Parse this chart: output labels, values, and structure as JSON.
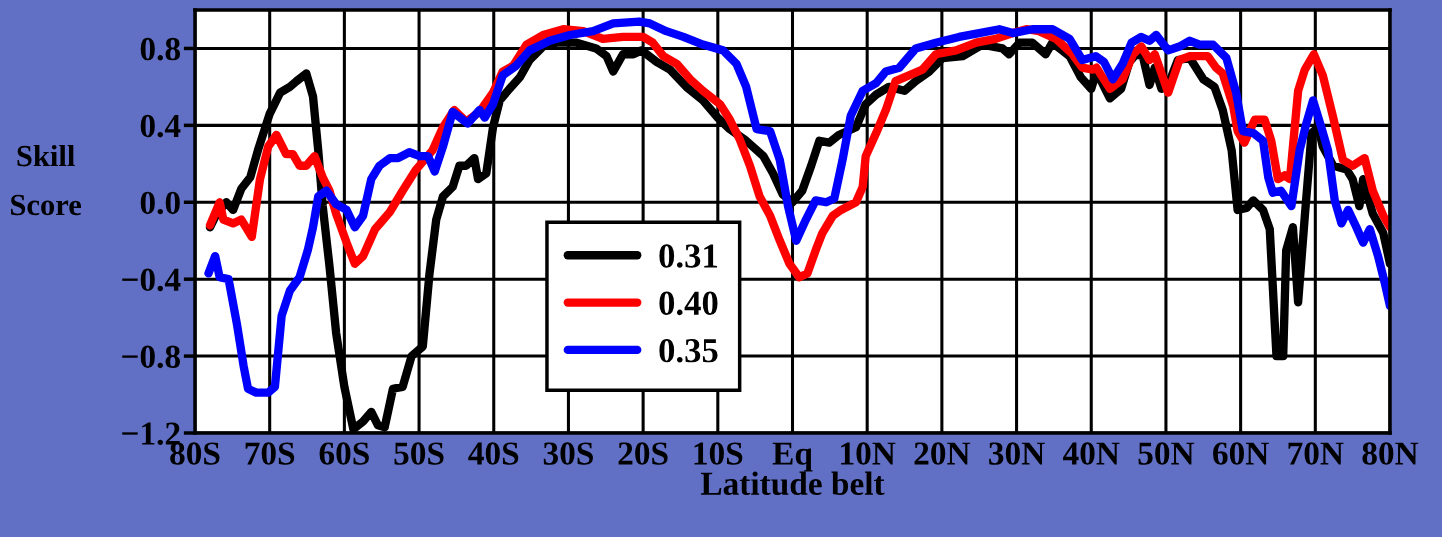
{
  "chart_data": {
    "type": "line",
    "xlabel": "Latitude belt",
    "ylabel": "Skill\nScore",
    "xlim": [
      -80,
      80
    ],
    "xticks": [
      {
        "value": -80,
        "label": "80S"
      },
      {
        "value": -70,
        "label": "70S"
      },
      {
        "value": -60,
        "label": "60S"
      },
      {
        "value": -50,
        "label": "50S"
      },
      {
        "value": -40,
        "label": "40S"
      },
      {
        "value": -30,
        "label": "30S"
      },
      {
        "value": -20,
        "label": "20S"
      },
      {
        "value": -10,
        "label": "10S"
      },
      {
        "value": 0,
        "label": "Eq"
      },
      {
        "value": 10,
        "label": "10N"
      },
      {
        "value": 20,
        "label": "20N"
      },
      {
        "value": 30,
        "label": "30N"
      },
      {
        "value": 40,
        "label": "40N"
      },
      {
        "value": 50,
        "label": "50N"
      },
      {
        "value": 60,
        "label": "60N"
      },
      {
        "value": 70,
        "label": "70N"
      },
      {
        "value": 80,
        "label": "80N"
      }
    ],
    "ylim": [
      -1.2,
      1.0
    ],
    "yticks": [
      {
        "value": -1.2,
        "label": "−1.2"
      },
      {
        "value": -0.8,
        "label": "−0.8"
      },
      {
        "value": -0.4,
        "label": "−0.4"
      },
      {
        "value": 0,
        "label": "0.0"
      },
      0.4,
      0.8
    ],
    "grid": true,
    "legend": "bottom left",
    "line_style": "solid",
    "marker": "none",
    "series": [
      {
        "name": "0.31",
        "color": "#000000",
        "x": [
          -78,
          -77.1,
          -75.8,
          -74.9,
          -73.8,
          -72.6,
          -71.5,
          -70,
          -68.6,
          -67.3,
          -66.4,
          -65.1,
          -64.2,
          -63.5,
          -62.9,
          -62,
          -61.1,
          -60,
          -58.8,
          -57.5,
          -56.4,
          -55.5,
          -54.6,
          -53.5,
          -52.2,
          -51,
          -49.5,
          -48.6,
          -47.7,
          -46.8,
          -45.5,
          -44.6,
          -43.7,
          -42.6,
          -42.1,
          -41,
          -40.1,
          -39.2,
          -37.9,
          -36.5,
          -35.2,
          -33.4,
          -31.6,
          -28.9,
          -26.3,
          -24.9,
          -24,
          -22.7,
          -21.3,
          -20.2,
          -18.2,
          -16.4,
          -14.2,
          -12,
          -10,
          -8.4,
          -6.2,
          -3.9,
          -2.6,
          -1.3,
          0,
          1.3,
          2.5,
          3.6,
          4.9,
          6.2,
          8.5,
          9.8,
          11.2,
          12.9,
          15,
          16.5,
          18.3,
          20.1,
          22.8,
          25.4,
          28.1,
          29,
          30.4,
          32.1,
          33.9,
          34.8,
          37.1,
          38.6,
          40,
          40.7,
          42.5,
          44,
          45.1,
          46,
          46.9,
          47.8,
          48.5,
          49.4,
          50.3,
          51.6,
          53.2,
          55,
          56.5,
          57.6,
          58.8,
          59.6,
          60.8,
          61.7,
          63,
          63.9,
          64.8,
          65.7,
          66.1,
          67,
          67.7,
          68.6,
          69.5,
          70.4,
          71,
          72.4,
          74.2,
          75,
          75.9,
          76.4,
          77.7,
          79.1,
          80
        ],
        "values": [
          -0.13,
          -0.06,
          0.0,
          -0.04,
          0.07,
          0.13,
          0.28,
          0.46,
          0.57,
          0.6,
          0.63,
          0.67,
          0.55,
          0.27,
          -0.02,
          -0.33,
          -0.68,
          -0.96,
          -1.18,
          -1.14,
          -1.09,
          -1.16,
          -1.17,
          -0.97,
          -0.96,
          -0.8,
          -0.75,
          -0.37,
          -0.09,
          0.03,
          0.08,
          0.19,
          0.19,
          0.23,
          0.12,
          0.15,
          0.39,
          0.53,
          0.59,
          0.65,
          0.74,
          0.81,
          0.83,
          0.83,
          0.8,
          0.76,
          0.68,
          0.77,
          0.77,
          0.79,
          0.73,
          0.69,
          0.6,
          0.53,
          0.44,
          0.38,
          0.32,
          0.24,
          0.15,
          0.04,
          0.0,
          0.06,
          0.19,
          0.32,
          0.31,
          0.35,
          0.39,
          0.51,
          0.56,
          0.6,
          0.58,
          0.63,
          0.68,
          0.75,
          0.76,
          0.82,
          0.8,
          0.77,
          0.83,
          0.83,
          0.77,
          0.83,
          0.76,
          0.65,
          0.59,
          0.68,
          0.54,
          0.59,
          0.73,
          0.77,
          0.76,
          0.61,
          0.7,
          0.59,
          0.61,
          0.74,
          0.75,
          0.64,
          0.6,
          0.48,
          0.27,
          -0.04,
          -0.03,
          0.01,
          -0.04,
          -0.14,
          -0.8,
          -0.8,
          -0.25,
          -0.13,
          -0.52,
          -0.07,
          0.36,
          0.39,
          0.29,
          0.19,
          0.17,
          0.12,
          -0.02,
          0.12,
          -0.06,
          -0.16,
          -0.32
        ]
      },
      {
        "name": "0.40",
        "color": "#ff0000",
        "x": [
          -78,
          -76.7,
          -76.2,
          -74.9,
          -73.8,
          -72.4,
          -71.3,
          -70.2,
          -69.1,
          -67.8,
          -66.9,
          -66,
          -65.1,
          -64,
          -62.9,
          -62,
          -61.1,
          -59.7,
          -58.6,
          -57.5,
          -55.9,
          -55,
          -53.9,
          -52.2,
          -50.4,
          -48.2,
          -46.8,
          -45.3,
          -43.7,
          -41.9,
          -40.1,
          -38.8,
          -37.4,
          -35.6,
          -33.4,
          -30.7,
          -28,
          -25.4,
          -22.7,
          -20,
          -18.7,
          -17.3,
          -15.5,
          -13.7,
          -12,
          -9.7,
          -8.4,
          -7.1,
          -5.7,
          -4.4,
          -3,
          -1.7,
          -0.4,
          0.9,
          2,
          3.1,
          4,
          5.4,
          6.5,
          8.5,
          9.4,
          9.8,
          11.2,
          12.5,
          13.8,
          15.6,
          17.4,
          19.2,
          21.9,
          24.6,
          27.2,
          29.5,
          31.3,
          33,
          35.3,
          37.5,
          38.8,
          40.2,
          40.7,
          42.5,
          44.2,
          45.6,
          46.7,
          47.8,
          48.5,
          50.3,
          51.8,
          53.2,
          55.6,
          56.7,
          57.6,
          59,
          59.6,
          60.5,
          61.9,
          63.2,
          64.1,
          65,
          65.9,
          66.6,
          67.7,
          68.6,
          69.8,
          71,
          72.4,
          73.7,
          75,
          76.6,
          77.7,
          79.1,
          80
        ],
        "values": [
          -0.12,
          0.0,
          -0.09,
          -0.11,
          -0.09,
          -0.18,
          0.12,
          0.29,
          0.35,
          0.25,
          0.25,
          0.19,
          0.19,
          0.24,
          0.13,
          0.06,
          -0.06,
          -0.21,
          -0.32,
          -0.28,
          -0.14,
          -0.1,
          -0.05,
          0.06,
          0.17,
          0.27,
          0.39,
          0.48,
          0.42,
          0.47,
          0.57,
          0.68,
          0.71,
          0.82,
          0.87,
          0.9,
          0.89,
          0.85,
          0.86,
          0.86,
          0.83,
          0.76,
          0.72,
          0.64,
          0.58,
          0.51,
          0.43,
          0.33,
          0.19,
          0.03,
          -0.07,
          -0.2,
          -0.32,
          -0.39,
          -0.37,
          -0.25,
          -0.16,
          -0.07,
          -0.04,
          0.0,
          0.08,
          0.24,
          0.36,
          0.48,
          0.63,
          0.66,
          0.69,
          0.77,
          0.79,
          0.83,
          0.85,
          0.88,
          0.9,
          0.89,
          0.85,
          0.77,
          0.7,
          0.69,
          0.7,
          0.59,
          0.64,
          0.77,
          0.81,
          0.74,
          0.77,
          0.57,
          0.74,
          0.76,
          0.76,
          0.7,
          0.67,
          0.5,
          0.37,
          0.31,
          0.43,
          0.43,
          0.32,
          0.12,
          0.14,
          0.12,
          0.58,
          0.69,
          0.77,
          0.66,
          0.44,
          0.22,
          0.19,
          0.23,
          0.06,
          -0.07,
          -0.13
        ]
      },
      {
        "name": "0.35",
        "color": "#0000ff",
        "x": [
          -78.2,
          -77.3,
          -76.7,
          -75.5,
          -74.4,
          -73.5,
          -72.9,
          -71.8,
          -70.2,
          -69.3,
          -68.4,
          -67.3,
          -66,
          -64.9,
          -64.2,
          -63.5,
          -62.4,
          -61.1,
          -59.7,
          -58.6,
          -57.5,
          -56.4,
          -55.3,
          -53.9,
          -52.8,
          -51.3,
          -49.9,
          -48.8,
          -47.9,
          -46.8,
          -45.5,
          -43.5,
          -41.9,
          -41.2,
          -40.1,
          -38.8,
          -37,
          -35.2,
          -32.5,
          -29.8,
          -26.7,
          -24,
          -20.5,
          -19.1,
          -16.9,
          -14.6,
          -12,
          -9.3,
          -7.5,
          -6.2,
          -4.8,
          -3,
          -1.7,
          -0.6,
          0.5,
          1.8,
          3.1,
          4.5,
          5.6,
          6.7,
          7.8,
          9.4,
          11.2,
          12.5,
          14.3,
          16.5,
          19.2,
          22.3,
          25,
          27.7,
          29.5,
          32.1,
          34.8,
          37.1,
          38.8,
          40.6,
          41.7,
          42.9,
          44.2,
          45.4,
          46.7,
          47.8,
          48.7,
          50.3,
          51.8,
          53.2,
          54.5,
          56.3,
          58.1,
          59.4,
          60.3,
          61.7,
          63,
          63.7,
          64.3,
          65.4,
          66.8,
          67.9,
          68.8,
          69.7,
          70.8,
          71.7,
          72.6,
          73.5,
          74.4,
          75.5,
          76.4,
          77.3,
          78.4,
          79.3,
          80
        ],
        "values": [
          -0.37,
          -0.28,
          -0.39,
          -0.4,
          -0.63,
          -0.85,
          -0.97,
          -0.99,
          -0.99,
          -0.96,
          -0.59,
          -0.46,
          -0.39,
          -0.25,
          -0.13,
          0.03,
          0.06,
          -0.01,
          -0.04,
          -0.13,
          -0.07,
          0.12,
          0.19,
          0.23,
          0.23,
          0.26,
          0.24,
          0.24,
          0.16,
          0.29,
          0.47,
          0.41,
          0.48,
          0.44,
          0.51,
          0.66,
          0.71,
          0.79,
          0.84,
          0.87,
          0.89,
          0.93,
          0.94,
          0.93,
          0.89,
          0.86,
          0.82,
          0.79,
          0.72,
          0.6,
          0.38,
          0.37,
          0.22,
          -0.02,
          -0.2,
          -0.09,
          0.01,
          0.0,
          0.02,
          0.22,
          0.45,
          0.58,
          0.62,
          0.68,
          0.7,
          0.8,
          0.83,
          0.86,
          0.88,
          0.9,
          0.88,
          0.9,
          0.9,
          0.85,
          0.74,
          0.76,
          0.73,
          0.64,
          0.72,
          0.83,
          0.86,
          0.84,
          0.87,
          0.79,
          0.81,
          0.84,
          0.82,
          0.82,
          0.75,
          0.57,
          0.37,
          0.36,
          0.32,
          0.13,
          0.05,
          0.06,
          -0.02,
          0.27,
          0.41,
          0.53,
          0.39,
          0.27,
          0.01,
          -0.11,
          -0.04,
          -0.13,
          -0.21,
          -0.14,
          -0.28,
          -0.42,
          -0.54
        ]
      }
    ]
  }
}
